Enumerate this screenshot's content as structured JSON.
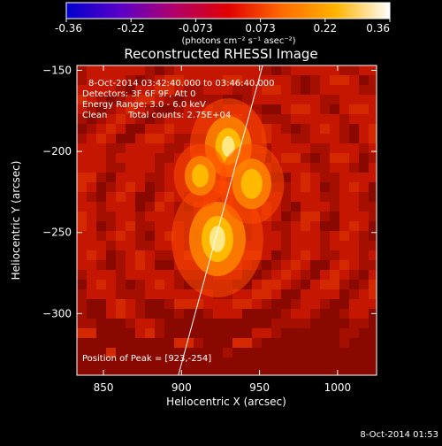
{
  "colorbar": {
    "tick_labels": [
      "-0.36",
      "-0.22",
      "-0.073",
      "0.073",
      "0.22",
      "0.36"
    ],
    "units_text": "(photons cm⁻² s⁻¹ asec⁻²)",
    "colors": [
      "#0000cc",
      "#5a00c8",
      "#b0006a",
      "#e00000",
      "#ff6a00",
      "#ffb400",
      "#ffffff"
    ]
  },
  "chart_data": {
    "type": "heatmap",
    "title": "Reconstructed RHESSI Image",
    "xlabel": "Heliocentric X (arcsec)",
    "ylabel": "Heliocentric Y (arcsec)",
    "xlim": [
      833,
      1025
    ],
    "ylim": [
      -338,
      -147
    ],
    "x_ticks": [
      850,
      900,
      950,
      1000
    ],
    "y_ticks": [
      -150,
      -200,
      -250,
      -300
    ],
    "x_tick_labels": [
      "850",
      "900",
      "950",
      "1000"
    ],
    "y_tick_labels": [
      "−150",
      "−200",
      "−250",
      "−300"
    ],
    "color_range": [
      -0.36,
      0.36
    ],
    "sources": [
      {
        "x": 923,
        "y": -254,
        "intensity": 1.0
      },
      {
        "x": 930,
        "y": -197,
        "intensity": 0.75
      },
      {
        "x": 945,
        "y": -220,
        "intensity": 0.55
      },
      {
        "x": 912,
        "y": -215,
        "intensity": 0.35
      }
    ],
    "peak": {
      "x": 923,
      "y": -254
    },
    "limb_line": [
      [
        898,
        -338
      ],
      [
        952,
        -147
      ]
    ]
  },
  "annotations": {
    "time_range": "8-Oct-2014 03:42:40.000 to 03:46:40.000",
    "detectors": "Detectors: 3F 6F 9F, Att 0",
    "energy_range": "Energy Range: 3.0 - 6.0 keV",
    "method": "Clean",
    "total_counts": "Total counts: 2.75E+04",
    "peak_position": "Position of Peak = [923,-254]"
  },
  "timestamp": "8-Oct-2014 01:53"
}
